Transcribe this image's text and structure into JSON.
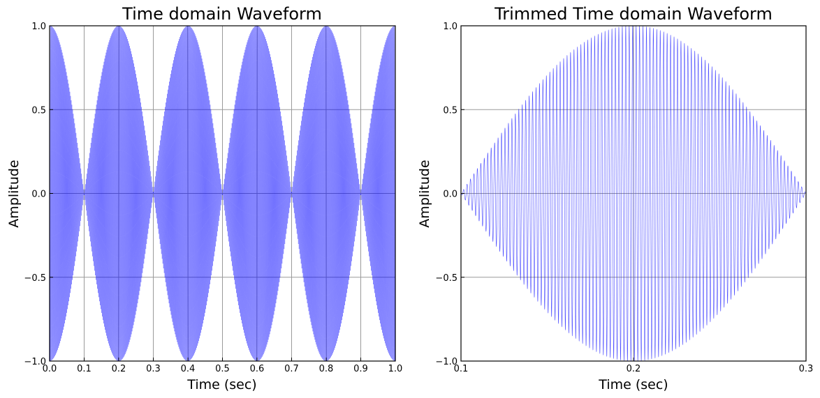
{
  "chart_data": [
    {
      "type": "line",
      "title": "Time domain Waveform",
      "xlabel": "Time (sec)",
      "ylabel": "Amplitude",
      "xlim": [
        0.0,
        1.0
      ],
      "ylim": [
        -1.0,
        1.0
      ],
      "xticks": [
        "0.0",
        "0.1",
        "0.2",
        "0.3",
        "0.4",
        "0.5",
        "0.6",
        "0.7",
        "0.8",
        "0.9",
        "1.0"
      ],
      "yticks": [
        "1.0",
        "0.5",
        "0.0",
        "−0.5",
        "−1.0"
      ],
      "grid": true,
      "series": [
        {
          "color": "#0000ff",
          "signal": "amplitude-modulated sine: cos(2π·2.5t)·sin(2π·500t)",
          "envelope_frequency_hz": 2.5,
          "carrier_frequency_hz": 500,
          "x_range": [
            0.0,
            1.0
          ]
        }
      ]
    },
    {
      "type": "line",
      "title": "Trimmed Time domain Waveform",
      "xlabel": "Time (sec)",
      "ylabel": "Amplitude",
      "xlim": [
        0.1,
        0.3
      ],
      "ylim": [
        -1.0,
        1.0
      ],
      "xticks": [
        "0.1",
        "0.2",
        "0.3"
      ],
      "yticks": [
        "1.0",
        "0.5",
        "0.0",
        "−0.5",
        "−1.0"
      ],
      "grid": true,
      "series": [
        {
          "color": "#0000ff",
          "signal": "amplitude-modulated sine: cos(2π·2.5t)·sin(2π·500t)",
          "envelope_frequency_hz": 2.5,
          "carrier_frequency_hz": 500,
          "x_range": [
            0.1,
            0.3
          ]
        }
      ]
    }
  ]
}
